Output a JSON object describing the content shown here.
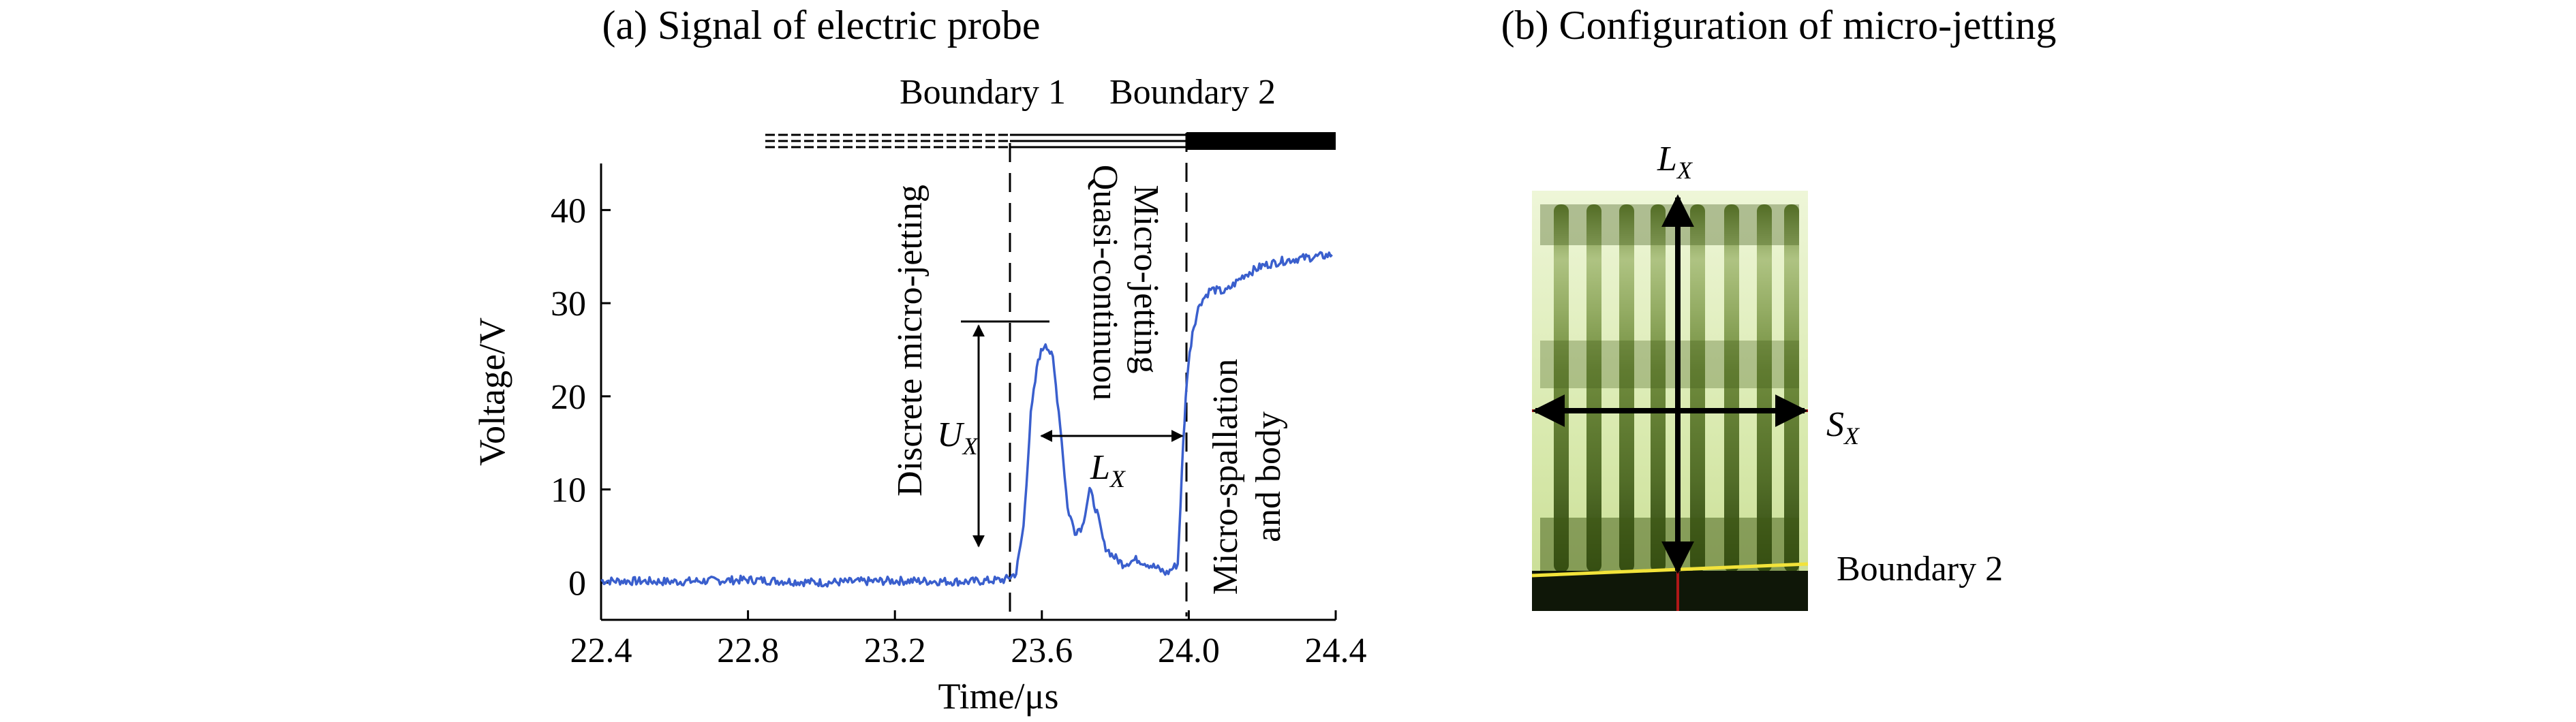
{
  "chart_data": {
    "type": "line",
    "title": "(a) Signal of electric probe",
    "xlabel": "Time/μs",
    "ylabel": "Voltage/V",
    "xlim": [
      22.4,
      24.4
    ],
    "ylim": [
      -4,
      45
    ],
    "xticks": [
      "22.4",
      "22.8",
      "23.2",
      "23.6",
      "24.0",
      "24.4"
    ],
    "yticks": [
      "0",
      "10",
      "20",
      "30",
      "40"
    ],
    "grid": false,
    "line_color": "#3a5fcd",
    "series": [
      {
        "x": [
          22.4,
          22.6,
          22.8,
          23.0,
          23.2,
          23.4,
          23.5,
          23.53,
          23.55,
          23.57,
          23.59,
          23.61,
          23.63,
          23.65,
          23.67,
          23.69,
          23.71,
          23.73,
          23.75,
          23.77,
          23.79,
          23.82,
          23.86,
          23.9,
          23.94,
          23.97,
          23.985,
          23.995,
          24.01,
          24.03,
          24.06,
          24.1,
          24.15,
          24.2,
          24.25,
          24.3,
          24.35,
          24.39
        ],
        "y": [
          0.2,
          0.1,
          0.3,
          0.0,
          0.2,
          0.1,
          0.3,
          1.0,
          6.0,
          18.0,
          24.0,
          25.8,
          24.0,
          17.0,
          8.0,
          5.5,
          6.0,
          10.0,
          7.5,
          4.0,
          3.0,
          2.0,
          2.5,
          1.8,
          1.0,
          2.0,
          15.0,
          22.0,
          27.0,
          30.0,
          31.5,
          31.2,
          33.0,
          34.0,
          34.5,
          34.8,
          35.0,
          35.2
        ]
      }
    ],
    "annotations": {
      "boundary1": "Boundary 1",
      "boundary2": "Boundary 2",
      "discrete": "Discrete micro-jetting",
      "quasi_line1": "Quasi-continuou",
      "quasi_line2": "Micro-jetting",
      "spall_line1": "Micro-spallation",
      "spall_line2": "and body",
      "ux": "U",
      "ux_sub": "X",
      "lx": "L",
      "lx_sub": "X"
    }
  },
  "panel_b": {
    "title": "(b) Configuration of micro-jetting",
    "lx": "L",
    "lx_sub": "X",
    "sx": "S",
    "sx_sub": "X",
    "boundary_label": "Boundary 2",
    "colors": {
      "jet_green": "#5a7a25",
      "background_green": "#dcebb4",
      "boundary_line": "#f2e33a",
      "axis_line": "#b01818"
    }
  }
}
